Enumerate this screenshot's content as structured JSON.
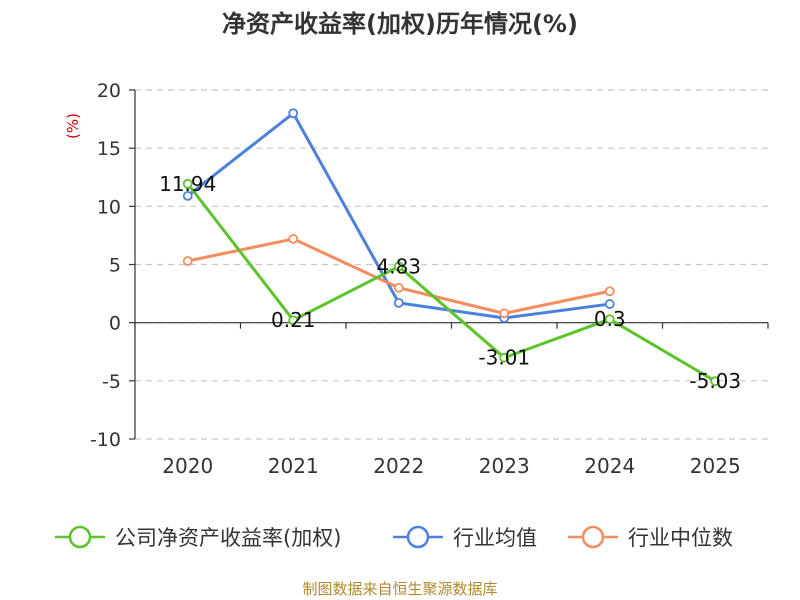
{
  "chart_data": {
    "type": "line",
    "title": "净资产收益率(加权)历年情况(%)",
    "ylabel": "(%)",
    "xlabel": "",
    "categories": [
      "2020",
      "2021",
      "2022",
      "2023",
      "2024",
      "2025"
    ],
    "ylim": [
      -10,
      20
    ],
    "yticks": [
      -10,
      -5,
      0,
      5,
      10,
      15,
      20
    ],
    "grid": true,
    "legend_position": "bottom",
    "series": [
      {
        "name": "公司净资产收益率(加权)",
        "color": "#5bc42a",
        "values": [
          11.94,
          0.21,
          4.83,
          -3.01,
          0.3,
          -5.03
        ],
        "labels": [
          "11.94",
          "0.21",
          "4.83",
          "-3.01",
          "0.3",
          "-5.03"
        ]
      },
      {
        "name": "行业均值",
        "color": "#4c80dd",
        "values": [
          10.9,
          18.0,
          1.7,
          0.4,
          1.6,
          null
        ]
      },
      {
        "name": "行业中位数",
        "color": "#f58c5e",
        "values": [
          5.3,
          7.2,
          3.0,
          0.8,
          2.7,
          null
        ]
      }
    ]
  },
  "footer": {
    "source": "制图数据来自恒生聚源数据库"
  }
}
